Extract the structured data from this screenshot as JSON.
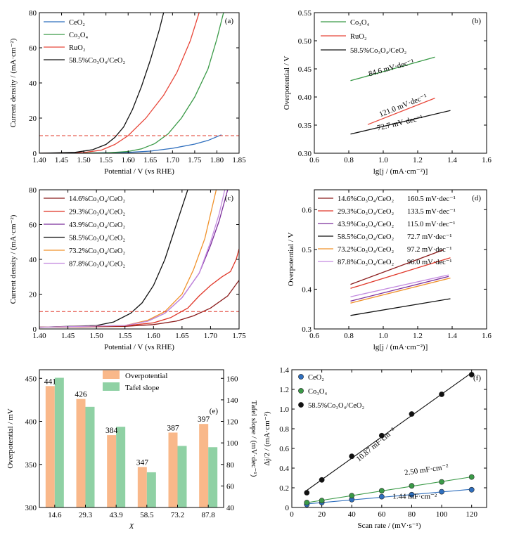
{
  "chart_data": [
    {
      "panel": "a",
      "type": "line",
      "panel_label": "(a)",
      "xlabel": "Potential / V (vs RHE)",
      "ylabel": "Current density / (mA·cm⁻²)",
      "xlim": [
        1.4,
        1.85
      ],
      "ylim": [
        0,
        80
      ],
      "xticks": [
        "1.40",
        "1.45",
        "1.50",
        "1.55",
        "1.60",
        "1.65",
        "1.70",
        "1.75",
        "1.80",
        "1.85"
      ],
      "yticks": [
        "0",
        "20",
        "40",
        "60",
        "80"
      ],
      "hline": {
        "y": 10,
        "color": "#e0382a",
        "style": "dashed",
        "x_range": [
          1.4,
          1.85
        ]
      },
      "legend": "top-left",
      "series": [
        {
          "name": "CeO₂",
          "color": "#2f6fbe",
          "x": [
            1.4,
            1.5,
            1.6,
            1.65,
            1.7,
            1.75,
            1.78,
            1.81
          ],
          "y": [
            0,
            0.1,
            0.5,
            1.2,
            2.8,
            5.2,
            7.3,
            10.5
          ]
        },
        {
          "name": "Co₃O₄",
          "color": "#3a9a47",
          "x": [
            1.4,
            1.55,
            1.6,
            1.63,
            1.66,
            1.69,
            1.72,
            1.75,
            1.78,
            1.8,
            1.815
          ],
          "y": [
            0,
            0.2,
            1.0,
            2.5,
            5.5,
            11,
            20,
            32,
            48,
            65,
            80
          ]
        },
        {
          "name": "RuO₂",
          "color": "#e8473a",
          "x": [
            1.4,
            1.5,
            1.54,
            1.57,
            1.6,
            1.64,
            1.68,
            1.71,
            1.74,
            1.76
          ],
          "y": [
            0,
            0.4,
            1.8,
            5,
            10,
            20,
            33,
            46,
            64,
            80
          ]
        },
        {
          "name": "58.5%Co₃O₄/CeO₂",
          "color": "#111111",
          "x": [
            1.4,
            1.48,
            1.52,
            1.55,
            1.57,
            1.59,
            1.61,
            1.63,
            1.65,
            1.67,
            1.68
          ],
          "y": [
            0,
            0.5,
            2,
            5,
            9,
            15,
            25,
            38,
            53,
            70,
            80
          ]
        }
      ]
    },
    {
      "panel": "b",
      "type": "line",
      "panel_label": "(b)",
      "xlabel": "lg[j / (mA·cm⁻²)]",
      "ylabel": "Overpotential / V",
      "xlim": [
        0.6,
        1.6
      ],
      "ylim": [
        0.3,
        0.55
      ],
      "xticks": [
        "0.6",
        "0.8",
        "1.0",
        "1.2",
        "1.4",
        "1.6"
      ],
      "yticks": [
        "0.30",
        "0.35",
        "0.40",
        "0.45",
        "0.50",
        "0.55"
      ],
      "legend": "top-left",
      "series": [
        {
          "name": "Co₃O₄",
          "color": "#3a9a47",
          "x": [
            0.81,
            1.3
          ],
          "y": [
            0.429,
            0.471
          ],
          "slope_label": "84.6 mV·dec⁻¹"
        },
        {
          "name": "RuO₂",
          "color": "#e8473a",
          "x": [
            0.91,
            1.3
          ],
          "y": [
            0.351,
            0.398
          ],
          "slope_label": "121.0 mV·dec⁻¹"
        },
        {
          "name": "58.5%Co₃O₄/CeO₂",
          "color": "#111111",
          "x": [
            0.81,
            1.39
          ],
          "y": [
            0.334,
            0.376
          ],
          "slope_label": "72.7 mV·dec⁻¹"
        }
      ]
    },
    {
      "panel": "c",
      "type": "line",
      "panel_label": "(c)",
      "xlabel": "Potential / V (vs RHE)",
      "ylabel": "Current density / (mA·cm⁻²)",
      "xlim": [
        1.4,
        1.75
      ],
      "ylim": [
        0,
        80
      ],
      "xticks": [
        "1.40",
        "1.45",
        "1.50",
        "1.55",
        "1.60",
        "1.65",
        "1.70",
        "1.75"
      ],
      "yticks": [
        "0",
        "20",
        "40",
        "60",
        "80"
      ],
      "hline": {
        "y": 10,
        "color": "#e0382a",
        "style": "dashed",
        "x_range": [
          1.4,
          1.75
        ]
      },
      "legend": "top-left",
      "series": [
        {
          "name": "14.6%Co₃O₄/CeO₂",
          "color": "#8b1c1c",
          "x": [
            1.4,
            1.55,
            1.6,
            1.64,
            1.67,
            1.7,
            1.73,
            1.75
          ],
          "y": [
            1,
            1.5,
            2.5,
            4.5,
            7.5,
            12,
            19,
            28
          ]
        },
        {
          "name": "29.3%Co₃O₄/CeO₂",
          "color": "#e0382a",
          "x": [
            1.4,
            1.55,
            1.6,
            1.63,
            1.66,
            1.68,
            1.7,
            1.72,
            1.735,
            1.745,
            1.75
          ],
          "y": [
            1,
            1.8,
            3.5,
            6.5,
            12,
            19,
            25,
            30,
            33,
            40,
            46
          ]
        },
        {
          "name": "43.9%Co₃O₄/CeO₂",
          "color": "#7b2d9b",
          "x": [
            1.4,
            1.55,
            1.59,
            1.62,
            1.65,
            1.68,
            1.7,
            1.715,
            1.73
          ],
          "y": [
            1,
            2,
            4.5,
            9,
            18,
            32,
            48,
            62,
            80
          ]
        },
        {
          "name": "58.5%Co₃O₄/CeO₂",
          "color": "#111111",
          "x": [
            1.4,
            1.5,
            1.53,
            1.56,
            1.58,
            1.6,
            1.62,
            1.64,
            1.66
          ],
          "y": [
            1,
            2,
            4,
            9,
            15,
            25,
            40,
            60,
            80
          ]
        },
        {
          "name": "73.2%Co₃O₄/CeO₂",
          "color": "#f0922b",
          "x": [
            1.4,
            1.55,
            1.59,
            1.62,
            1.65,
            1.67,
            1.69,
            1.7,
            1.71
          ],
          "y": [
            1,
            2,
            5,
            10,
            20,
            34,
            52,
            66,
            80
          ]
        },
        {
          "name": "87.8%Co₃O₄/CeO₂",
          "color": "#c48be0",
          "x": [
            1.4,
            1.55,
            1.59,
            1.62,
            1.65,
            1.68,
            1.7,
            1.715,
            1.725
          ],
          "y": [
            1,
            2,
            4.5,
            9,
            18,
            32,
            50,
            66,
            80
          ]
        }
      ]
    },
    {
      "panel": "d",
      "type": "line",
      "panel_label": "(d)",
      "xlabel": "lg[j / (mA·cm⁻²)]",
      "ylabel": "Overpotential / V",
      "xlim": [
        0.6,
        1.6
      ],
      "ylim": [
        0.3,
        0.65
      ],
      "xticks": [
        "0.6",
        "0.8",
        "1.0",
        "1.2",
        "1.4",
        "1.6"
      ],
      "yticks": [
        "0.3",
        "0.4",
        "0.5",
        "0.6"
      ],
      "legend": "top-left",
      "series": [
        {
          "name": "14.6%Co₃O₄/CeO₂",
          "color": "#8b1c1c",
          "x": [
            0.81,
            1.35
          ],
          "y": [
            0.412,
            0.499
          ],
          "slope_label": "160.5 mV·dec⁻¹"
        },
        {
          "name": "29.3%Co₃O₄/CeO₂",
          "color": "#e0382a",
          "x": [
            0.81,
            1.39
          ],
          "y": [
            0.402,
            0.479
          ],
          "slope_label": "133.5 mV·dec⁻¹"
        },
        {
          "name": "43.9%Co₃O₄/CeO₂",
          "color": "#7b2d9b",
          "x": [
            0.81,
            1.38
          ],
          "y": [
            0.37,
            0.432
          ],
          "slope_label": "115.0 mV·dec⁻¹"
        },
        {
          "name": "58.5%Co₃O₄/CeO₂",
          "color": "#111111",
          "x": [
            0.81,
            1.39
          ],
          "y": [
            0.334,
            0.376
          ],
          "slope_label": "72.7 mV·dec⁻¹"
        },
        {
          "name": "73.2%Co₃O₄/CeO₂",
          "color": "#f0922b",
          "x": [
            0.81,
            1.39
          ],
          "y": [
            0.365,
            0.428
          ],
          "slope_label": "97.2 mV·dec⁻¹"
        },
        {
          "name": "87.8%Co₃O₄/CeO₂",
          "color": "#c48be0",
          "x": [
            0.81,
            1.38
          ],
          "y": [
            0.381,
            0.436
          ],
          "slope_label": "96.0 mV·dec⁻¹"
        }
      ]
    },
    {
      "panel": "e",
      "type": "bar",
      "panel_label": "(e)",
      "xlabel": "X",
      "ylabel": "Overpotential / mV",
      "y2label": "Tafel slope / (mV·dec⁻¹)",
      "categories": [
        "14.6",
        "29.3",
        "43.9",
        "58.5",
        "73.2",
        "87.8"
      ],
      "ylim": [
        300,
        460
      ],
      "y2lim": [
        40,
        168
      ],
      "yticks": [
        "300",
        "350",
        "400",
        "450"
      ],
      "y2ticks": [
        "40",
        "60",
        "80",
        "100",
        "120",
        "140",
        "160"
      ],
      "legend": "top-center",
      "series": [
        {
          "name": "Overpotential",
          "color": "#f9b88a",
          "label_color": "#e8872b",
          "axis": "left",
          "values": [
            441,
            426,
            384,
            347,
            387,
            397
          ],
          "data_labels": [
            "441",
            "426",
            "384",
            "347",
            "387",
            "397"
          ]
        },
        {
          "name": "Tafel slope",
          "color": "#8fd1a4",
          "axis": "right",
          "values": [
            160.5,
            133.5,
            115.0,
            72.7,
            97.2,
            96.0
          ]
        }
      ]
    },
    {
      "panel": "f",
      "type": "scatter",
      "panel_label": "(f)",
      "xlabel": "Scan rate / (mV·s⁻¹)",
      "ylabel": "Δj/2 / (mA·cm⁻²)",
      "xlim": [
        0,
        130
      ],
      "ylim": [
        0,
        1.4
      ],
      "xticks": [
        "0",
        "20",
        "40",
        "60",
        "80",
        "100",
        "120"
      ],
      "yticks": [
        "0",
        "0.2",
        "0.4",
        "0.6",
        "0.8",
        "1.0",
        "1.2",
        "1.4"
      ],
      "legend": "top-left",
      "series": [
        {
          "name": "CeO₂",
          "color": "#2f6fbe",
          "x": [
            10,
            20,
            40,
            60,
            80,
            100,
            120
          ],
          "y": [
            0.03,
            0.05,
            0.08,
            0.11,
            0.13,
            0.16,
            0.18
          ],
          "fit_label": "1.44 mF·cm⁻²",
          "label_color": "#2f6fbe"
        },
        {
          "name": "Co₃O₄",
          "color": "#3a9a47",
          "x": [
            10,
            20,
            40,
            60,
            80,
            100,
            120
          ],
          "y": [
            0.05,
            0.07,
            0.12,
            0.17,
            0.22,
            0.26,
            0.31
          ],
          "fit_label": "2.50 mF·cm⁻²",
          "label_color": "#3a9a47"
        },
        {
          "name": "58.5%Co₃O₄/CeO₂",
          "color": "#111111",
          "x": [
            10,
            20,
            40,
            60,
            80,
            100,
            120
          ],
          "y": [
            0.15,
            0.28,
            0.52,
            0.73,
            0.95,
            1.15,
            1.35
          ],
          "fit_label": "10.87 mF·cm⁻²",
          "label_color": "#111111"
        }
      ]
    }
  ]
}
